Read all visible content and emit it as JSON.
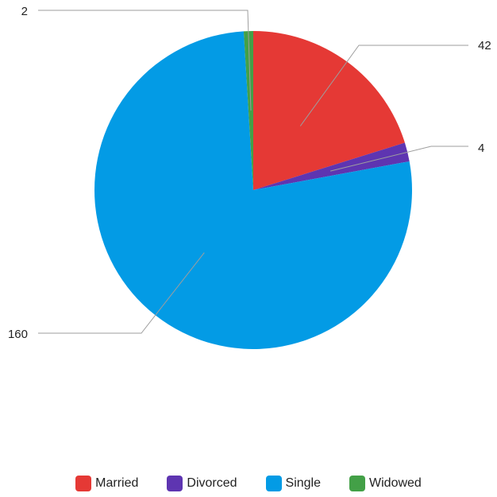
{
  "chart_data": {
    "type": "pie",
    "title": "",
    "slices": [
      {
        "label": "Married",
        "value": 42,
        "value_label": "42",
        "color": "#e53935"
      },
      {
        "label": "Divorced",
        "value": 4,
        "value_label": "4",
        "color": "#5e35b1"
      },
      {
        "label": "Single",
        "value": 160,
        "value_label": "160",
        "color": "#039be5"
      },
      {
        "label": "Widowed",
        "value": 2,
        "value_label": "2",
        "color": "#43a047"
      }
    ],
    "legend_position": "bottom",
    "start_angle_deg": 0,
    "direction": "clockwise"
  }
}
